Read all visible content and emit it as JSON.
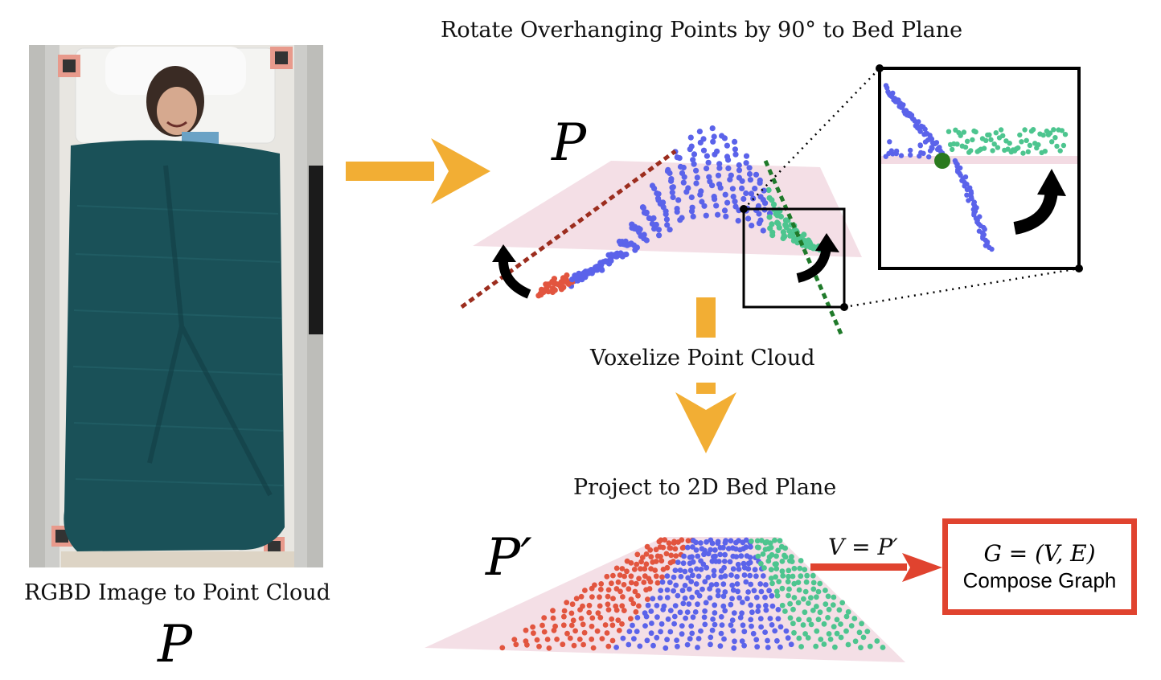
{
  "step1": {
    "caption": "RGBD Image to Point Cloud",
    "symbol": "P"
  },
  "step2": {
    "title": "Rotate Overhanging Points by 90° to Bed Plane",
    "symbol": "P"
  },
  "step3": {
    "label": "Voxelize Point Cloud"
  },
  "step4": {
    "label": "Project to 2D Bed Plane",
    "symbol": "P′",
    "edge_label": "V = P′"
  },
  "graph": {
    "formula": "G = (V, E)",
    "caption": "Compose Graph"
  },
  "colors": {
    "arrow": "#f2ae34",
    "red_arrow": "#e0432f",
    "blue_points": "#5b63ea",
    "green_points": "#4dc58f",
    "red_points": "#e2553f",
    "bed_plane": "#f3dbe3",
    "blanket": "#1a5158",
    "dashed_red": "#9c2d1e",
    "dashed_green": "#1f7a2a"
  },
  "icons": [
    "curved-arrow-icon",
    "zoom-box-icon"
  ]
}
